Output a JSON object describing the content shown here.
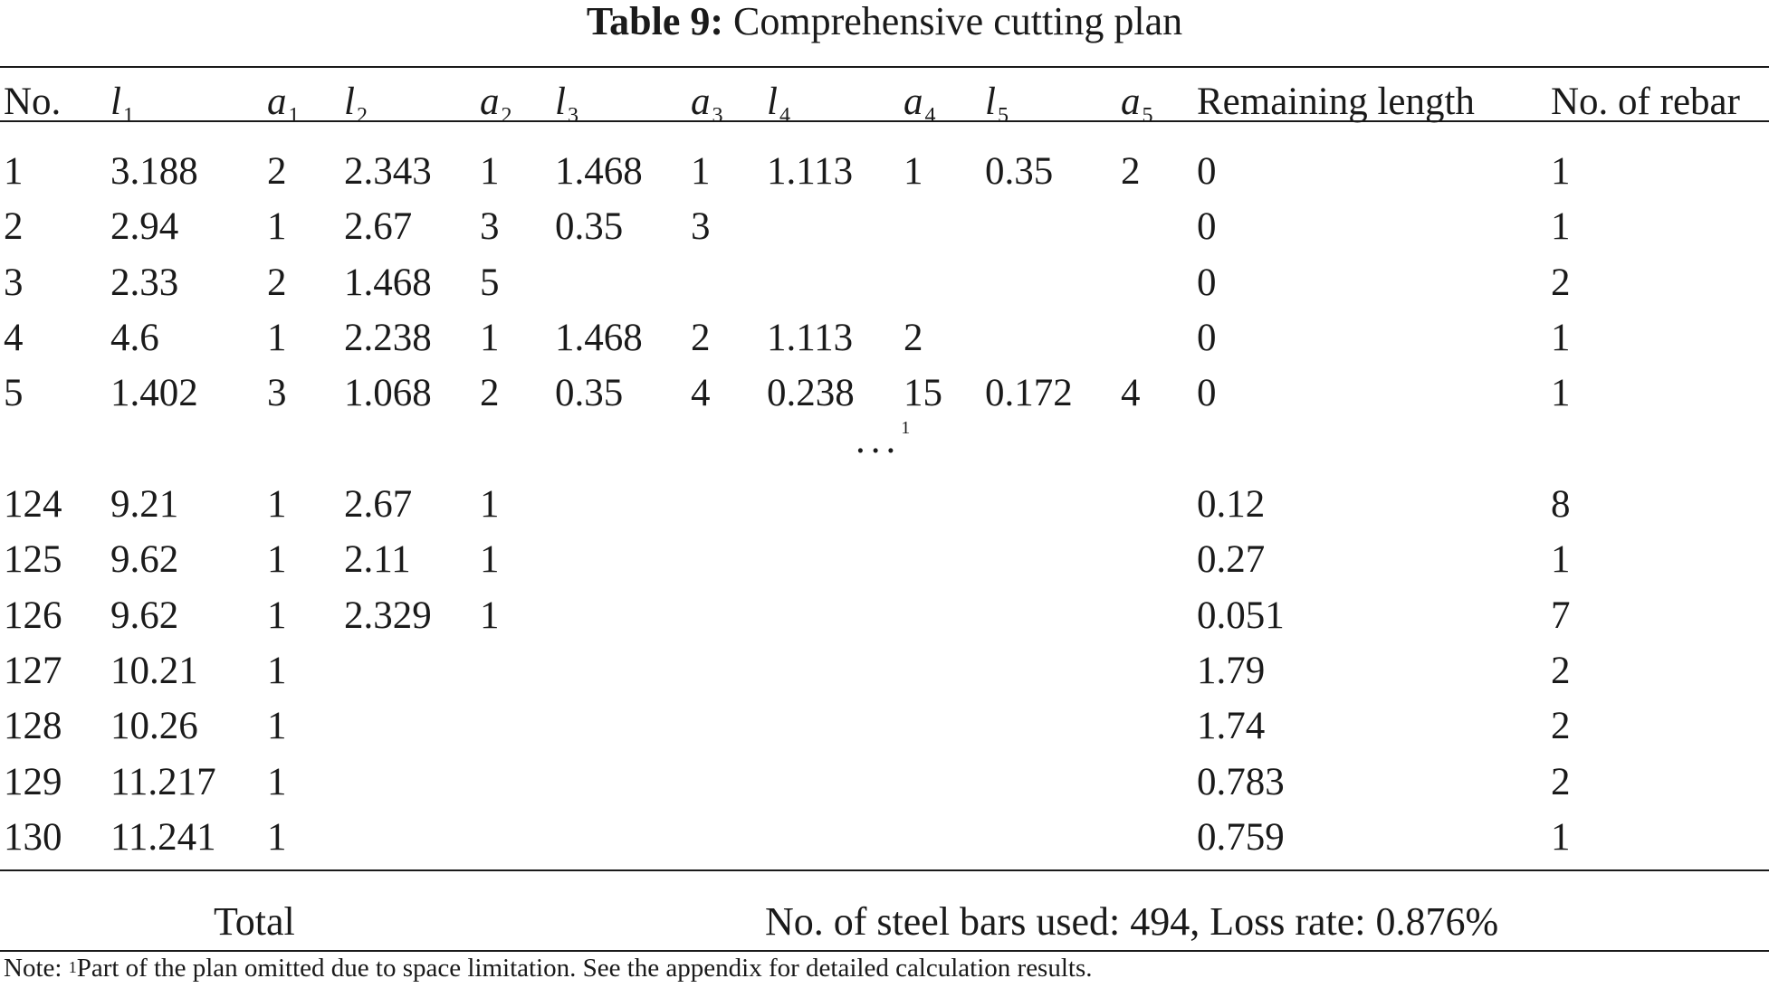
{
  "caption": {
    "label": "Table 9:",
    "title": "Comprehensive cutting plan"
  },
  "columns": [
    {
      "key": "no",
      "text": "No."
    },
    {
      "key": "l1",
      "sym": "l",
      "sub": "1"
    },
    {
      "key": "a1",
      "sym": "a",
      "sub": "1"
    },
    {
      "key": "l2",
      "sym": "l",
      "sub": "2"
    },
    {
      "key": "a2",
      "sym": "a",
      "sub": "2"
    },
    {
      "key": "l3",
      "sym": "l",
      "sub": "3"
    },
    {
      "key": "a3",
      "sym": "a",
      "sub": "3"
    },
    {
      "key": "l4",
      "sym": "l",
      "sub": "4"
    },
    {
      "key": "a4",
      "sym": "a",
      "sub": "4"
    },
    {
      "key": "l5",
      "sym": "l",
      "sub": "5"
    },
    {
      "key": "a5",
      "sym": "a",
      "sub": "5"
    },
    {
      "key": "remaining",
      "text": "Remaining length"
    },
    {
      "key": "count",
      "text": "No. of rebar"
    }
  ],
  "rows_top": [
    [
      "1",
      "3.188",
      "2",
      "2.343",
      "1",
      "1.468",
      "1",
      "1.113",
      "1",
      "0.35",
      "2",
      "0",
      "1"
    ],
    [
      "2",
      "2.94",
      "1",
      "2.67",
      "3",
      "0.35",
      "3",
      "",
      "",
      "",
      "",
      "0",
      "1"
    ],
    [
      "3",
      "2.33",
      "2",
      "1.468",
      "5",
      "",
      "",
      "",
      "",
      "",
      "",
      "0",
      "2"
    ],
    [
      "4",
      "4.6",
      "1",
      "2.238",
      "1",
      "1.468",
      "2",
      "1.113",
      "2",
      "",
      "",
      "0",
      "1"
    ],
    [
      "5",
      "1.402",
      "3",
      "1.068",
      "2",
      "0.35",
      "4",
      "0.238",
      "15",
      "0.172",
      "4",
      "0",
      "1"
    ]
  ],
  "ellipsis": {
    "text": "...",
    "footnote_mark": "1"
  },
  "rows_bottom": [
    [
      "124",
      "9.21",
      "1",
      "2.67",
      "1",
      "",
      "",
      "",
      "",
      "",
      "",
      "0.12",
      "8"
    ],
    [
      "125",
      "9.62",
      "1",
      "2.11",
      "1",
      "",
      "",
      "",
      "",
      "",
      "",
      "0.27",
      "1"
    ],
    [
      "126",
      "9.62",
      "1",
      "2.329",
      "1",
      "",
      "",
      "",
      "",
      "",
      "",
      "0.051",
      "7"
    ],
    [
      "127",
      "10.21",
      "1",
      "",
      "",
      "",
      "",
      "",
      "",
      "",
      "",
      "1.79",
      "2"
    ],
    [
      "128",
      "10.26",
      "1",
      "",
      "",
      "",
      "",
      "",
      "",
      "",
      "",
      "1.74",
      "2"
    ],
    [
      "129",
      "11.217",
      "1",
      "",
      "",
      "",
      "",
      "",
      "",
      "",
      "",
      "0.783",
      "2"
    ],
    [
      "130",
      "11.241",
      "1",
      "",
      "",
      "",
      "",
      "",
      "",
      "",
      "",
      "0.759",
      "1"
    ]
  ],
  "total": {
    "label": "Total",
    "value": "No. of steel bars used: 494, Loss rate: 0.876%"
  },
  "note": {
    "prefix": "Note:",
    "mark": "1",
    "text": "Part of the plan omitted due to space limitation. See the appendix for detailed calculation results."
  }
}
